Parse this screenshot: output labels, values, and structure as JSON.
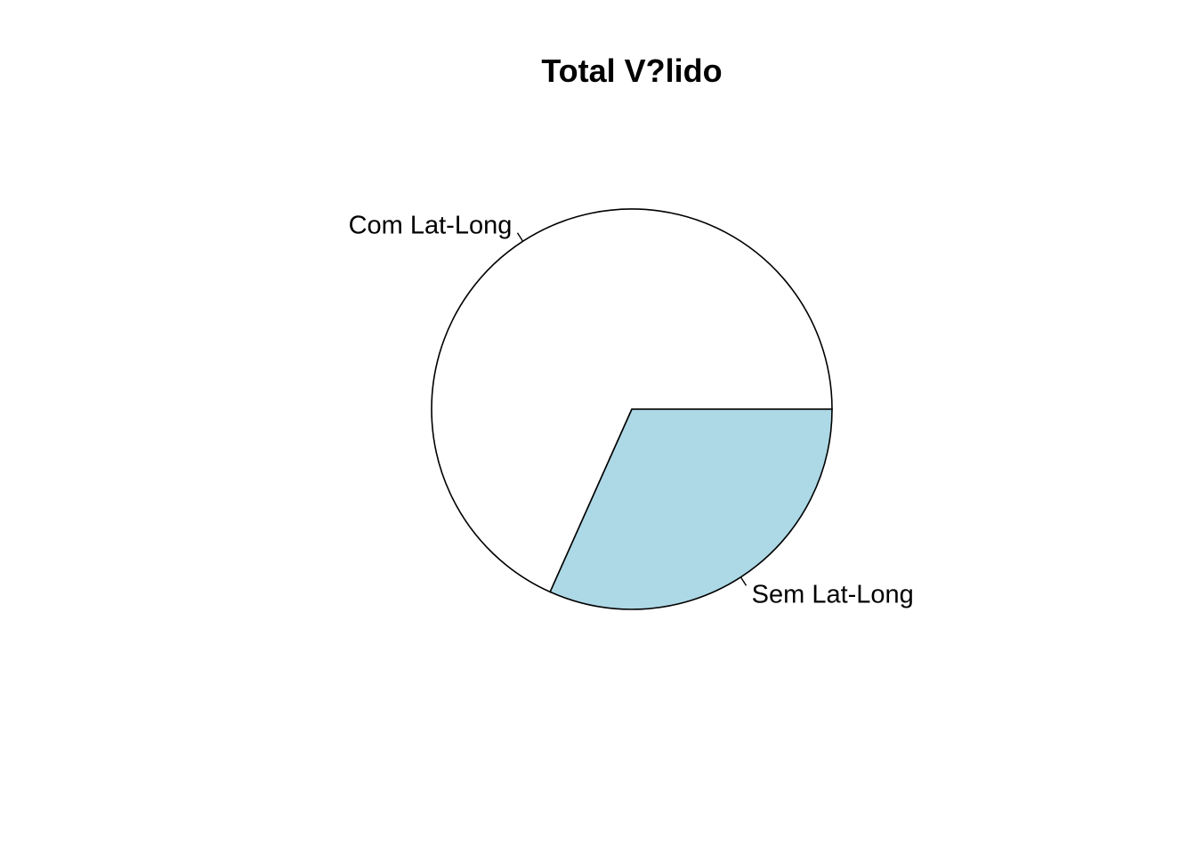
{
  "chart_data": {
    "type": "pie",
    "title": "Total V?lido",
    "slices": [
      {
        "label": "Com Lat-Long",
        "value": 0.6831,
        "color": "#ffffff"
      },
      {
        "label": "Sem Lat-Long",
        "value": 0.3169,
        "color": "#add8e6"
      }
    ],
    "start_angle_deg": 0,
    "direction": "counterclockwise",
    "border_color": "#000000"
  }
}
